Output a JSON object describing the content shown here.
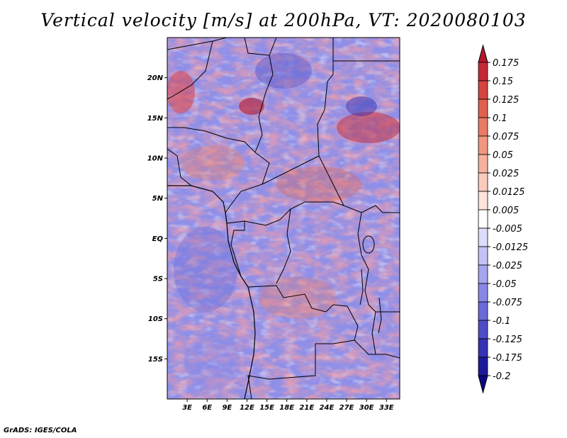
{
  "title": "Vertical velocity [m/s] at 200hPa, VT: 2020080103",
  "footer": "GrADS: IGES/COLA",
  "map": {
    "lat_labels": [
      "20N",
      "15N",
      "10N",
      "5N",
      "EQ",
      "5S",
      "10S",
      "15S"
    ],
    "lat_values": [
      20,
      15,
      10,
      5,
      0,
      -5,
      -10,
      -15
    ],
    "lon_labels": [
      "3E",
      "6E",
      "9E",
      "12E",
      "15E",
      "18E",
      "21E",
      "24E",
      "27E",
      "30E",
      "33E"
    ],
    "lon_values": [
      3,
      6,
      9,
      12,
      15,
      18,
      21,
      24,
      27,
      30,
      33
    ],
    "lat_range": [
      -20,
      25
    ],
    "lon_range": [
      0,
      35
    ]
  },
  "colorbar": {
    "levels": [
      "0.175",
      "0.15",
      "0.125",
      "0.1",
      "0.075",
      "0.05",
      "0.025",
      "0.0125",
      "0.005",
      "-0.005",
      "-0.0125",
      "-0.025",
      "-0.05",
      "-0.075",
      "-0.1",
      "-0.125",
      "-0.175",
      "-0.2"
    ],
    "colors": [
      "#b2182b",
      "#c62a35",
      "#d6443f",
      "#e0604e",
      "#e97b65",
      "#f0977f",
      "#f5b19e",
      "#f9cbbd",
      "#fde3da",
      "#ffffff",
      "#dcdcfb",
      "#c2c2f5",
      "#a5a5ee",
      "#8787e6",
      "#6a6ad8",
      "#4d4dc8",
      "#3333b3",
      "#1a1a99",
      "#0a0a80"
    ]
  }
}
